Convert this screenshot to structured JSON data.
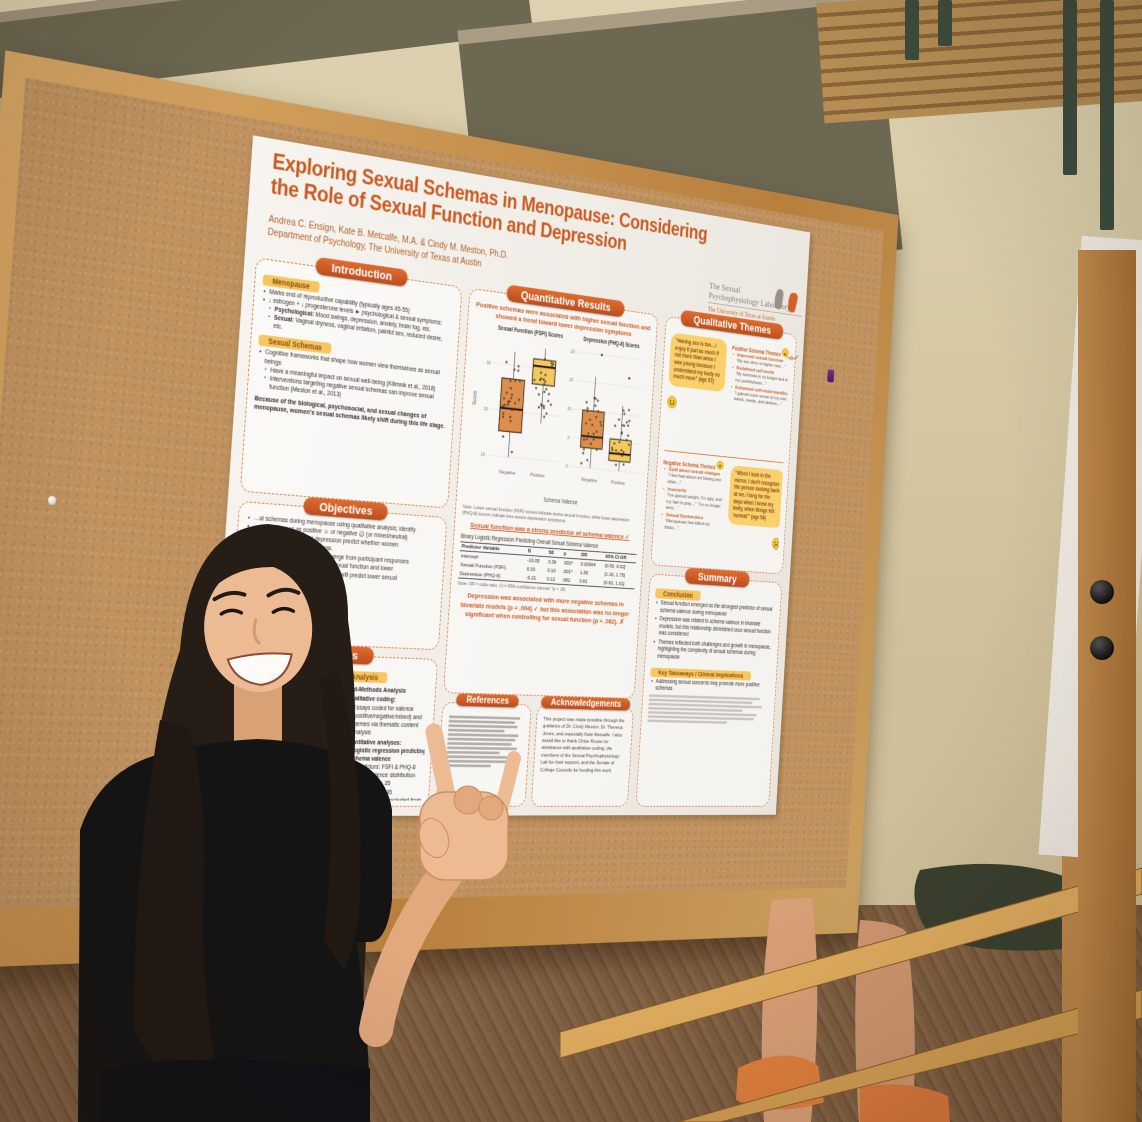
{
  "poster": {
    "title": "Exploring Sexual Schemas in Menopause: Considering the Role of Sexual Function and Depression",
    "authors": "Andrea C. Ensign, Kate B. Metcalfe, M.A. & Cindy M. Meston, Ph.D.",
    "affiliation": "Department of Psychology, The University of Texas at Austin",
    "lab_logo": {
      "line1": "The Sexual",
      "line2": "Psychophysiology Laboratory",
      "line3": "The University of Texas at Austin"
    },
    "intro": {
      "header": "Introduction",
      "menopause_badge": "Menopause",
      "menopause_bullets": [
        "Marks end of reproductive capability (typically ages 45-55)",
        "↓ estrogen + ↓ progesterone levels ► psychological & sexual symptoms:"
      ],
      "menopause_sub": [
        {
          "lead": "Psychological:",
          "text": " Mood swings, depression, anxiety, brain fog, etc."
        },
        {
          "lead": "Sexual:",
          "text": " Vaginal dryness, vaginal irritation, painful sex, reduced desire, etc."
        }
      ],
      "schemas_badge": "Sexual Schemas",
      "schemas_bullet": "Cognitive frameworks that shape how women view themselves as sexual beings",
      "schemas_sub": [
        "Have a meaningful impact on sexual well-being (Kilimnik et al., 2018)",
        "Interventions targeting negative sexual schemas can improve sexual function (Meston et al., 2013)"
      ],
      "highlight": "Because of the biological, psychosocial, and sexual changes of menopause, women's sexual schemas likely shift during this life stage."
    },
    "objectives": {
      "header": "Objectives",
      "lines": [
        "…al schemas during menopause using qualitative analysis; identify",
        "…ssify schemas as positive ☺ or negative ☹ (or mixed/neutral)",
        "…er sexual function and depression predict whether women",
        "…e or negative sexual schemas.",
        "…ve & negative schemas will emerge from participant responses",
        "…ve schemas will predict higher sexual function and lower",
        "…n scores, while negative schemas will predict lower sexual",
        "…nd higher depression scores"
      ]
    },
    "methods": {
      "header": "Methods",
      "participants_badge": "…ants",
      "participant_fragments": [
        "…al, 97",
        "…37",
        "…ific",
        "…c, rac",
        "…SFI (Ro",
        "…8 (Kroe",
        "…a sexual",
        "…how this",
        "…m the way",
        "…f prior to"
      ],
      "measure_badge": "…re",
      "analysis_badge": "Analysis",
      "analysis_title": "Mixed-Methods Analysis",
      "qual_lead": "Qualitative coding:",
      "qual_text": "Essays coded for valence (positive/negative/mixed) and themes via thematic content analysis",
      "quant_lead": "Quantitative analyses:",
      "quant_b1": "Logistic regression predicting schema valence",
      "quant_b1_sub": [
        "Predictors: FSFI & PHQ-8"
      ],
      "quant_b2": "Schema valence distribution",
      "quant_b2_sub": [
        "Positive: n = 35",
        "Negative: n = 45",
        "Mixed: n = 21 (excluded from regression)"
      ]
    },
    "quant": {
      "header": "Quantitative Results",
      "note": "Note: Lower sexual function (FSFI) scores indicate worse sexual function, while lower depression (PHQ-8) scores indicate less severe depression symptoms.",
      "finding1": "Sexual function was a strong predictor of schema valence ✓",
      "table_title": "Binary Logistic Regression Predicting Overall Sexual Schema Valence",
      "table_columns": [
        "Predictor Variable",
        "B",
        "SE",
        "p",
        "OR",
        "95% CI OR"
      ],
      "table_rows": [
        [
          "Intercept",
          "-10.05",
          "3.38",
          ".003*",
          "0.00004",
          "[0.00, 0.02]"
        ],
        [
          "Sexual Function (FSFI)",
          "0.33",
          "0.10",
          ".001*",
          "1.39",
          "[1.16, 1.75]"
        ],
        [
          "Depression (PHQ-8)",
          "-0.21",
          "0.12",
          ".082",
          "0.81",
          "[0.62, 1.01]"
        ]
      ],
      "table_note": "Note: OR = odds ratio, CI = 95% confidence interval. *p < .05.",
      "finding2": "Depression was associated with more negative schemas in bivariate models (p = .004) ✓ but this association was no longer significant when controlling for sexual function (p = .082). ✗"
    },
    "qualitative": {
      "header": "Qualitative Themes",
      "quote_positive": "“Having sex is fun…I enjoy it just as much if not more than when I was young because I understand my body so much more” (age 57)",
      "positive_title": "Positive Schema Themes",
      "positive_themes": [
        {
          "theme": "Improved sexual function",
          "quote": "“My sex drive is higher now…”"
        },
        {
          "theme": "Redefined self-worth",
          "quote": "“My sexiness is no longer tied to my youthfulness…”"
        },
        {
          "theme": "Enhanced self-understanding",
          "quote": "“I gained more sense of my own wants, needs, and desires…”"
        }
      ],
      "negative_title": "Negative Schema Themes",
      "negative_themes": [
        {
          "theme": "Guilt about sexual changes",
          "quote": "“I feel bad about not having sex often…”"
        },
        {
          "theme": "Insecurity",
          "quote": "“I've gained weight, I'm ugly, and my hair is gray…” “I'm no longer sexy…”"
        },
        {
          "theme": "Sexual Dysfunction",
          "quote": "“Menopause has killed my libido…”"
        }
      ],
      "quote_negative": "“When I look in the mirror, I don't recognize the person looking back at me. I long for the days when I knew my body, when things felt ‘normal’” (age 54)"
    },
    "summary": {
      "header": "Summary",
      "conclusion_badge": "Conclusion",
      "conclusion_bullets": [
        "Sexual function emerged as the strongest predictor of sexual schema valence during menopause",
        "Depression was related to schema valence in bivariate models, but this relationship diminished once sexual function was considered",
        "Themes reflected both challenges and growth in menopause, highlighting the complexity of sexual schemas during menopause"
      ],
      "takeaway_badge": "Key Takeaways / Clinical Implications",
      "takeaway_line": "Addressing sexual concerns may promote more positive schemas"
    },
    "references": {
      "header": "References"
    },
    "acknowledgements": {
      "header": "Acknowledgements",
      "text": "This project was made possible through the guidance of Dr. Cindy Meston, Dr. Theresa Jones, and especially Kate Metcalfe. I also would like to thank Chloe Rouse for assistance with qualitative coding, the members of the Sexual Psychophysiology Lab for their support, and the Senate of College Councils for funding this work."
    }
  },
  "chart_data": {
    "type": "boxplot",
    "title": "Quantitative Results",
    "subtitle": "Positive schemas were associated with higher sexual function and showed a trend toward lower depression symptoms",
    "xlabel": "Schema Valence",
    "ylabel": "Score",
    "legend_position": "none",
    "grid": true,
    "panels": [
      {
        "title": "Sexual Function (FSFI) Scores",
        "ylim": [
          8,
          36
        ],
        "yticks": [
          10,
          20,
          30
        ],
        "categories": [
          "Negative",
          "Positive"
        ],
        "boxes": [
          {
            "label": "Negative",
            "color": "#dd8e4d",
            "whislo": 10,
            "q1": 15.5,
            "med": 20.5,
            "q3": 27,
            "whishi": 33,
            "outliers": []
          },
          {
            "label": "Positive",
            "color": "#f3c95f",
            "whislo": 18,
            "q1": 26.5,
            "med": 30.5,
            "q3": 32,
            "whishi": 34.5,
            "outliers": []
          }
        ]
      },
      {
        "title": "Depression (PHQ-8) Scores",
        "ylim": [
          -1,
          21
        ],
        "yticks": [
          0,
          5,
          10,
          15,
          20
        ],
        "categories": [
          "Negative",
          "Positive"
        ],
        "boxes": [
          {
            "label": "Negative",
            "color": "#dd8e4d",
            "whislo": 0,
            "q1": 3.5,
            "med": 5.5,
            "q3": 10,
            "whishi": 16,
            "outliers": [
              20
            ]
          },
          {
            "label": "Positive",
            "color": "#f3c95f",
            "whislo": 0,
            "q1": 1.7,
            "med": 3,
            "q3": 5.5,
            "whishi": 11.5,
            "outliers": [
              16.5
            ]
          }
        ]
      }
    ],
    "colors": {
      "negative_box": "#dd8e4d",
      "positive_box": "#f3c95f",
      "accent_orange": "#cb5a21",
      "badge_yellow": "#f6c75f"
    }
  }
}
